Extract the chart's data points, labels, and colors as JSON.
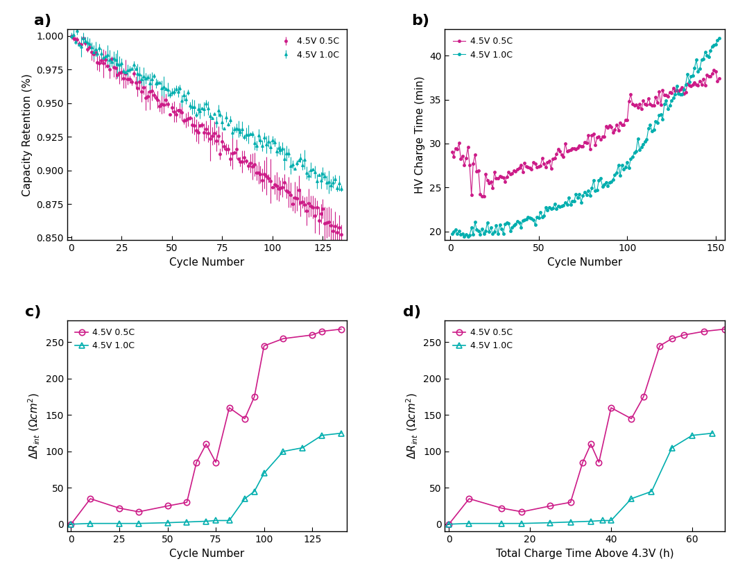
{
  "colors": {
    "magenta": "#CC1A87",
    "teal": "#00AEAE"
  },
  "panel_a": {
    "xlabel": "Cycle Number",
    "ylabel": "Capacity Retention (%)",
    "xlim": [
      -2,
      137
    ],
    "ylim": [
      0.848,
      1.005
    ],
    "yticks": [
      0.85,
      0.875,
      0.9,
      0.925,
      0.95,
      0.975,
      1.0
    ],
    "xticks": [
      0,
      25,
      50,
      75,
      100,
      125
    ],
    "legend": [
      "4.5V 0.5C",
      "4.5V 1.0C"
    ]
  },
  "panel_b": {
    "xlabel": "Cycle Number",
    "ylabel": "HV Charge Time (min)",
    "xlim": [
      -3,
      155
    ],
    "ylim": [
      19,
      43
    ],
    "yticks": [
      20,
      25,
      30,
      35,
      40
    ],
    "xticks": [
      0,
      50,
      100,
      150
    ],
    "legend": [
      "4.5V 0.5C",
      "4.5V 1.0C"
    ]
  },
  "panel_c": {
    "xlabel": "Cycle Number",
    "xlim": [
      -2,
      143
    ],
    "ylim": [
      -10,
      280
    ],
    "yticks": [
      0,
      50,
      100,
      150,
      200,
      250
    ],
    "xticks": [
      0,
      25,
      50,
      75,
      100,
      125
    ],
    "legend": [
      "4.5V 0.5C",
      "4.5V 1.0C"
    ]
  },
  "panel_d": {
    "xlabel": "Total Charge Time Above 4.3V (h)",
    "xlim": [
      -1,
      68
    ],
    "ylim": [
      -10,
      280
    ],
    "yticks": [
      0,
      50,
      100,
      150,
      200,
      250
    ],
    "xticks": [
      0,
      20,
      40,
      60
    ],
    "legend": [
      "4.5V 0.5C",
      "4.5V 1.0C"
    ]
  }
}
